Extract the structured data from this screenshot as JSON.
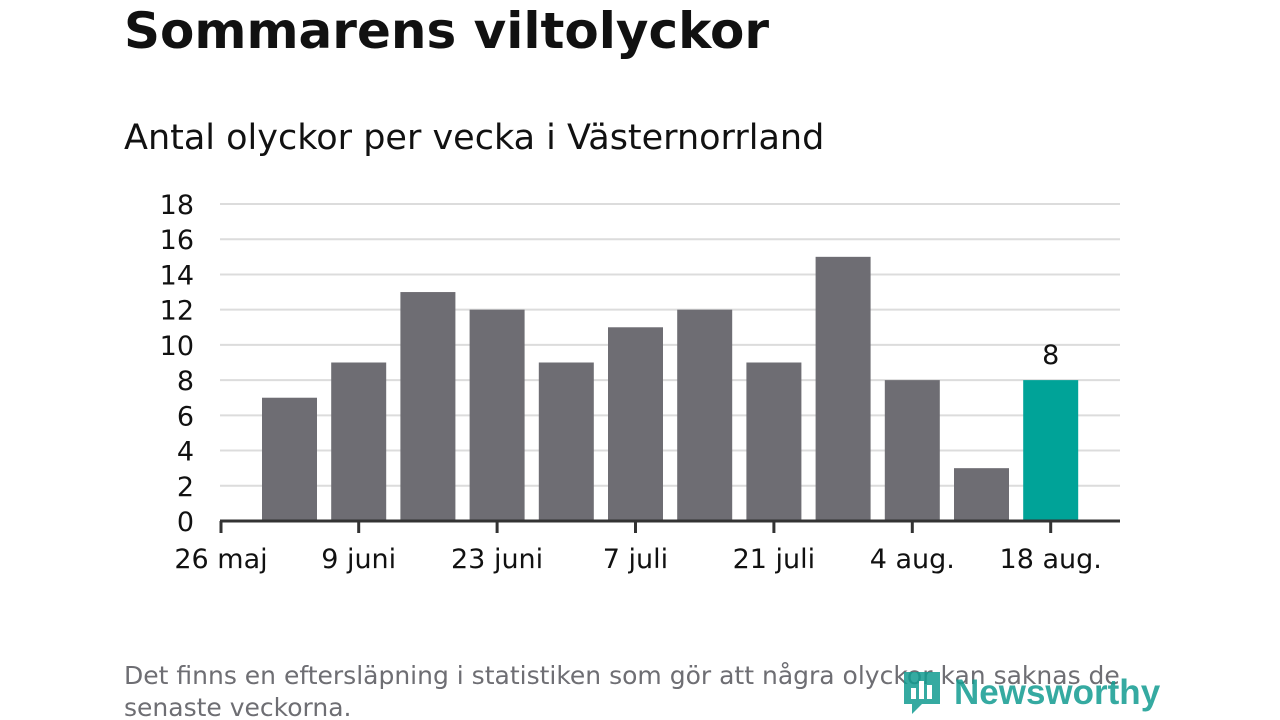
{
  "title": "Sommarens viltolyckor",
  "subtitle": "Antal olyckor per vecka i Västernorrland",
  "footnote": "Det finns en eftersläpning i statistiken som gör att några olyckor kan saknas de senaste veckorna.",
  "logo": {
    "text": "Newsworthy",
    "icon": "newsworthy-logo-icon"
  },
  "colors": {
    "bar": "#6e6d73",
    "highlight": "#00a398",
    "grid": "#dcdcdc",
    "axis": "#333333",
    "text": "#111111",
    "muted": "#6e6e73",
    "brand": "#129c91"
  },
  "chart_data": {
    "type": "bar",
    "title": "Sommarens viltolyckor",
    "subtitle": "Antal olyckor per vecka i Västernorrland",
    "xlabel": "",
    "ylabel": "",
    "ylim": [
      0,
      18
    ],
    "yticks": [
      "0",
      "2",
      "4",
      "6",
      "8",
      "10",
      "12",
      "14",
      "16",
      "18"
    ],
    "grid": true,
    "x_tick_labels": [
      "26 maj",
      "9 juni",
      "23 juni",
      "7 juli",
      "21 juli",
      "4 aug.",
      "18 aug."
    ],
    "values": [
      7,
      9,
      13,
      12,
      9,
      11,
      12,
      9,
      15,
      8,
      3,
      8
    ],
    "highlight_index": 11,
    "data_labels": [
      {
        "index": 11,
        "text": "8"
      }
    ]
  }
}
